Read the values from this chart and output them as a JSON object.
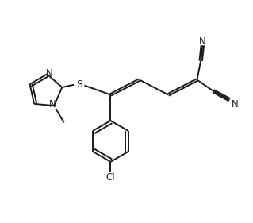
{
  "bg_color": "#ffffff",
  "line_color": "#1a1a1a",
  "line_width": 1.4,
  "font_size": 8.5,
  "figsize": [
    3.18,
    2.78
  ],
  "dpi": 100,
  "xlim": [
    0,
    10
  ],
  "ylim": [
    0,
    8.8
  ]
}
